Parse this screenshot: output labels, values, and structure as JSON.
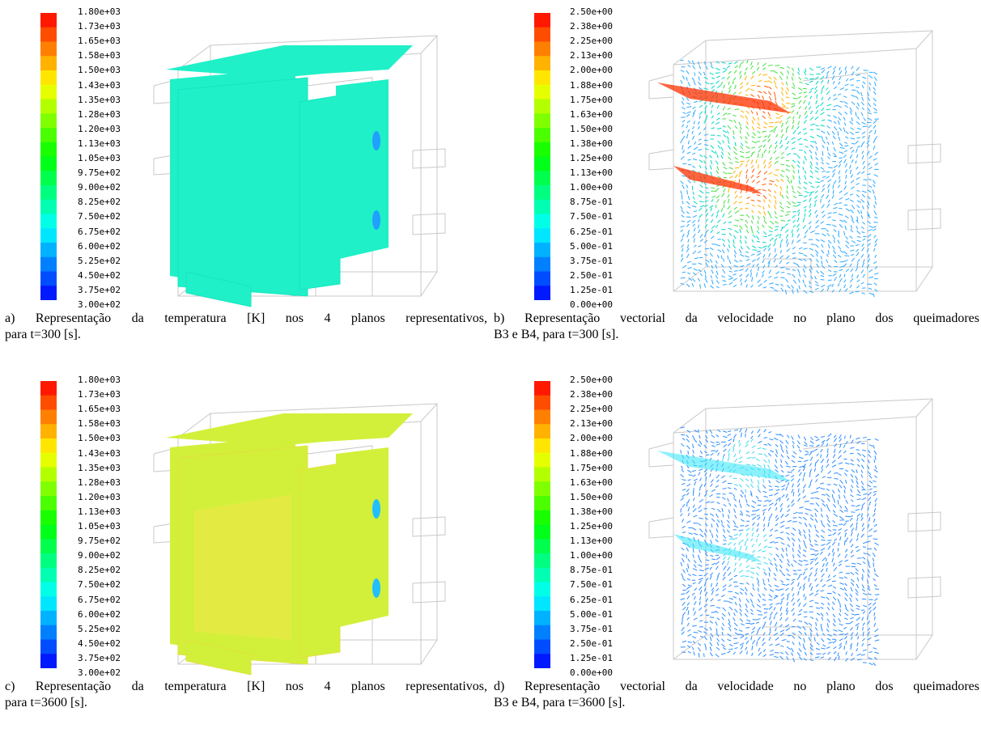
{
  "colors": {
    "cold_blue": "#0000ff",
    "cyan": "#00ffff",
    "green": "#00ff40",
    "yellow": "#ffff00",
    "red": "#ff0000",
    "mesh_gray": "#c8c8c8"
  },
  "panels": [
    {
      "id": "a",
      "kind": "temperature-planes",
      "colorbar": {
        "min": 300,
        "max": 1800,
        "tick_labels": [
          "1.80e+03",
          "1.73e+03",
          "1.65e+03",
          "1.58e+03",
          "1.50e+03",
          "1.43e+03",
          "1.35e+03",
          "1.28e+03",
          "1.20e+03",
          "1.13e+03",
          "1.05e+03",
          "9.75e+02",
          "9.00e+02",
          "8.25e+02",
          "7.50e+02",
          "6.75e+02",
          "6.00e+02",
          "5.25e+02",
          "4.50e+02",
          "3.75e+02",
          "3.00e+02"
        ]
      },
      "plane_color": "#1ff0c8",
      "caption_line1": "a) Representação da temperatura [K] nos 4 planos representativos,",
      "caption_line2": "para t=300 [s]."
    },
    {
      "id": "b",
      "kind": "velocity-vectors",
      "colorbar": {
        "min": 0,
        "max": 2.5,
        "tick_labels": [
          "2.50e+00",
          "2.38e+00",
          "2.25e+00",
          "2.13e+00",
          "2.00e+00",
          "1.88e+00",
          "1.75e+00",
          "1.63e+00",
          "1.50e+00",
          "1.38e+00",
          "1.25e+00",
          "1.13e+00",
          "1.00e+00",
          "8.75e-01",
          "7.50e-01",
          "6.25e-01",
          "5.00e-01",
          "3.75e-01",
          "2.50e-01",
          "1.25e-01",
          "0.00e+00"
        ]
      },
      "caption_line1": "b) Representação vectorial da velocidade no plano dos queimadores",
      "caption_line2": "B3 e B4, para t=300 [s]."
    },
    {
      "id": "c",
      "kind": "temperature-planes",
      "colorbar": {
        "min": 300,
        "max": 1800,
        "tick_labels": [
          "1.80e+03",
          "1.73e+03",
          "1.65e+03",
          "1.58e+03",
          "1.50e+03",
          "1.43e+03",
          "1.35e+03",
          "1.28e+03",
          "1.20e+03",
          "1.13e+03",
          "1.05e+03",
          "9.75e+02",
          "9.00e+02",
          "8.25e+02",
          "7.50e+02",
          "6.75e+02",
          "6.00e+02",
          "5.25e+02",
          "4.50e+02",
          "3.75e+02",
          "3.00e+02"
        ]
      },
      "plane_color": "#d2f03a",
      "caption_line1": "c) Representação da temperatura [K] nos 4 planos representativos,",
      "caption_line2": "para t=3600 [s]."
    },
    {
      "id": "d",
      "kind": "velocity-vectors",
      "colorbar": {
        "min": 0,
        "max": 2.5,
        "tick_labels": [
          "2.50e+00",
          "2.38e+00",
          "2.25e+00",
          "2.13e+00",
          "2.00e+00",
          "1.88e+00",
          "1.75e+00",
          "1.63e+00",
          "1.50e+00",
          "1.38e+00",
          "1.25e+00",
          "1.13e+00",
          "1.00e+00",
          "8.75e-01",
          "7.50e-01",
          "6.25e-01",
          "5.00e-01",
          "3.75e-01",
          "2.50e-01",
          "1.25e-01",
          "0.00e+00"
        ]
      },
      "caption_line1": "d) Representação vectorial da velocidade no plano dos queimadores",
      "caption_line2": "B3 e B4, para t=3600 [s]."
    }
  ]
}
